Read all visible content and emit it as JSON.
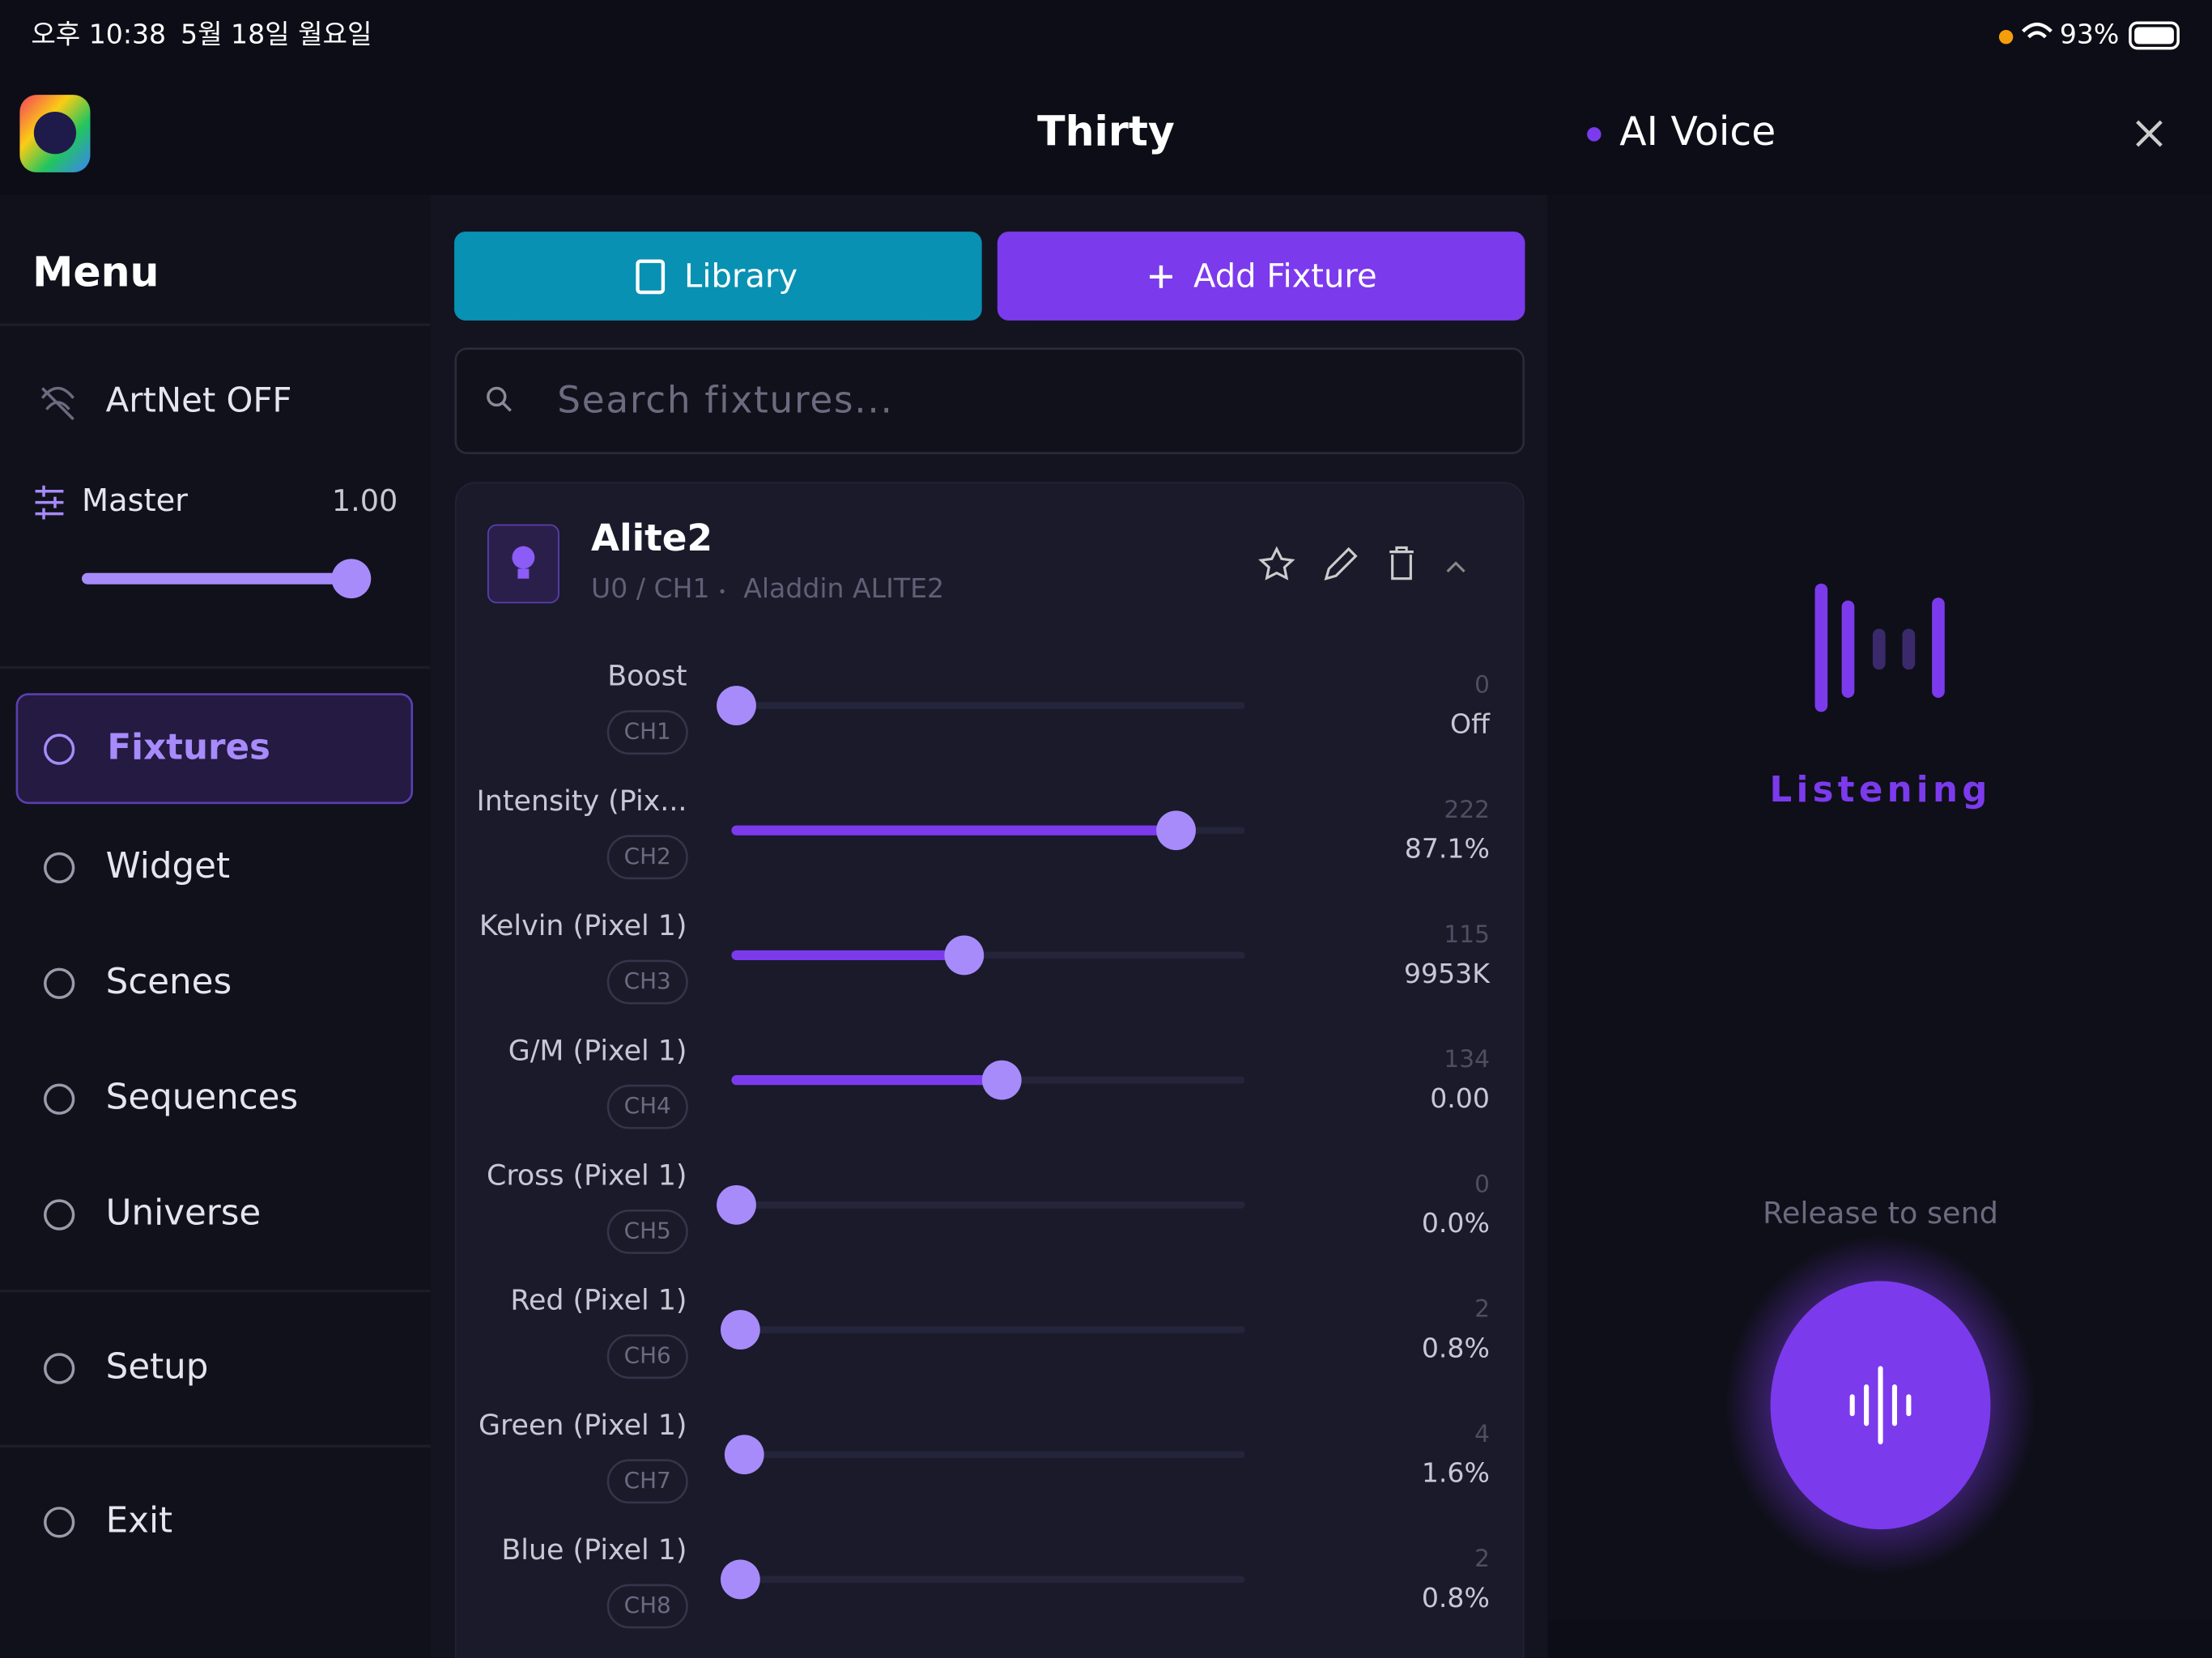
{
  "status": {
    "time": "오후 10:38",
    "date": "5월 18일 월요일",
    "battery": "93%"
  },
  "header": {
    "title": "Thirty",
    "panel_title": "AI Voice"
  },
  "menu": {
    "title": "Menu",
    "artnet": "ArtNet OFF",
    "master": {
      "label": "Master",
      "value": 1,
      "value_label": "1.00"
    },
    "items": [
      "Fixtures",
      "Widget",
      "Scenes",
      "Sequences",
      "Universe",
      "Setup",
      "Exit"
    ]
  },
  "toolbar": {
    "library": "Library",
    "add_fixture": "Add Fixture",
    "search_placeholder": "Search fixtures..."
  },
  "fixture": {
    "name": "Alite2",
    "address": "U0 / CH1",
    "model": "Aladdin ALITE2",
    "channels": [
      {
        "name": "Boost",
        "channel": "CH1",
        "raw": 0,
        "display": "Off"
      },
      {
        "name": "Intensity (Pix...",
        "channel": "CH2",
        "raw": 222,
        "display": "87.1%"
      },
      {
        "name": "Kelvin (Pixel 1)",
        "channel": "CH3",
        "raw": 115,
        "display": "9953K"
      },
      {
        "name": "G/M (Pixel 1)",
        "channel": "CH4",
        "raw": 134,
        "display": "0.00"
      },
      {
        "name": "Cross (Pixel 1)",
        "channel": "CH5",
        "raw": 0,
        "display": "0.0%"
      },
      {
        "name": "Red (Pixel 1)",
        "channel": "CH6",
        "raw": 2,
        "display": "0.8%"
      },
      {
        "name": "Green (Pixel 1)",
        "channel": "CH7",
        "raw": 4,
        "display": "1.6%"
      },
      {
        "name": "Blue (Pixel 1)",
        "channel": "CH8",
        "raw": 2,
        "display": "0.8%"
      }
    ]
  },
  "voice": {
    "status": "Listening",
    "hint": "Release to send"
  }
}
